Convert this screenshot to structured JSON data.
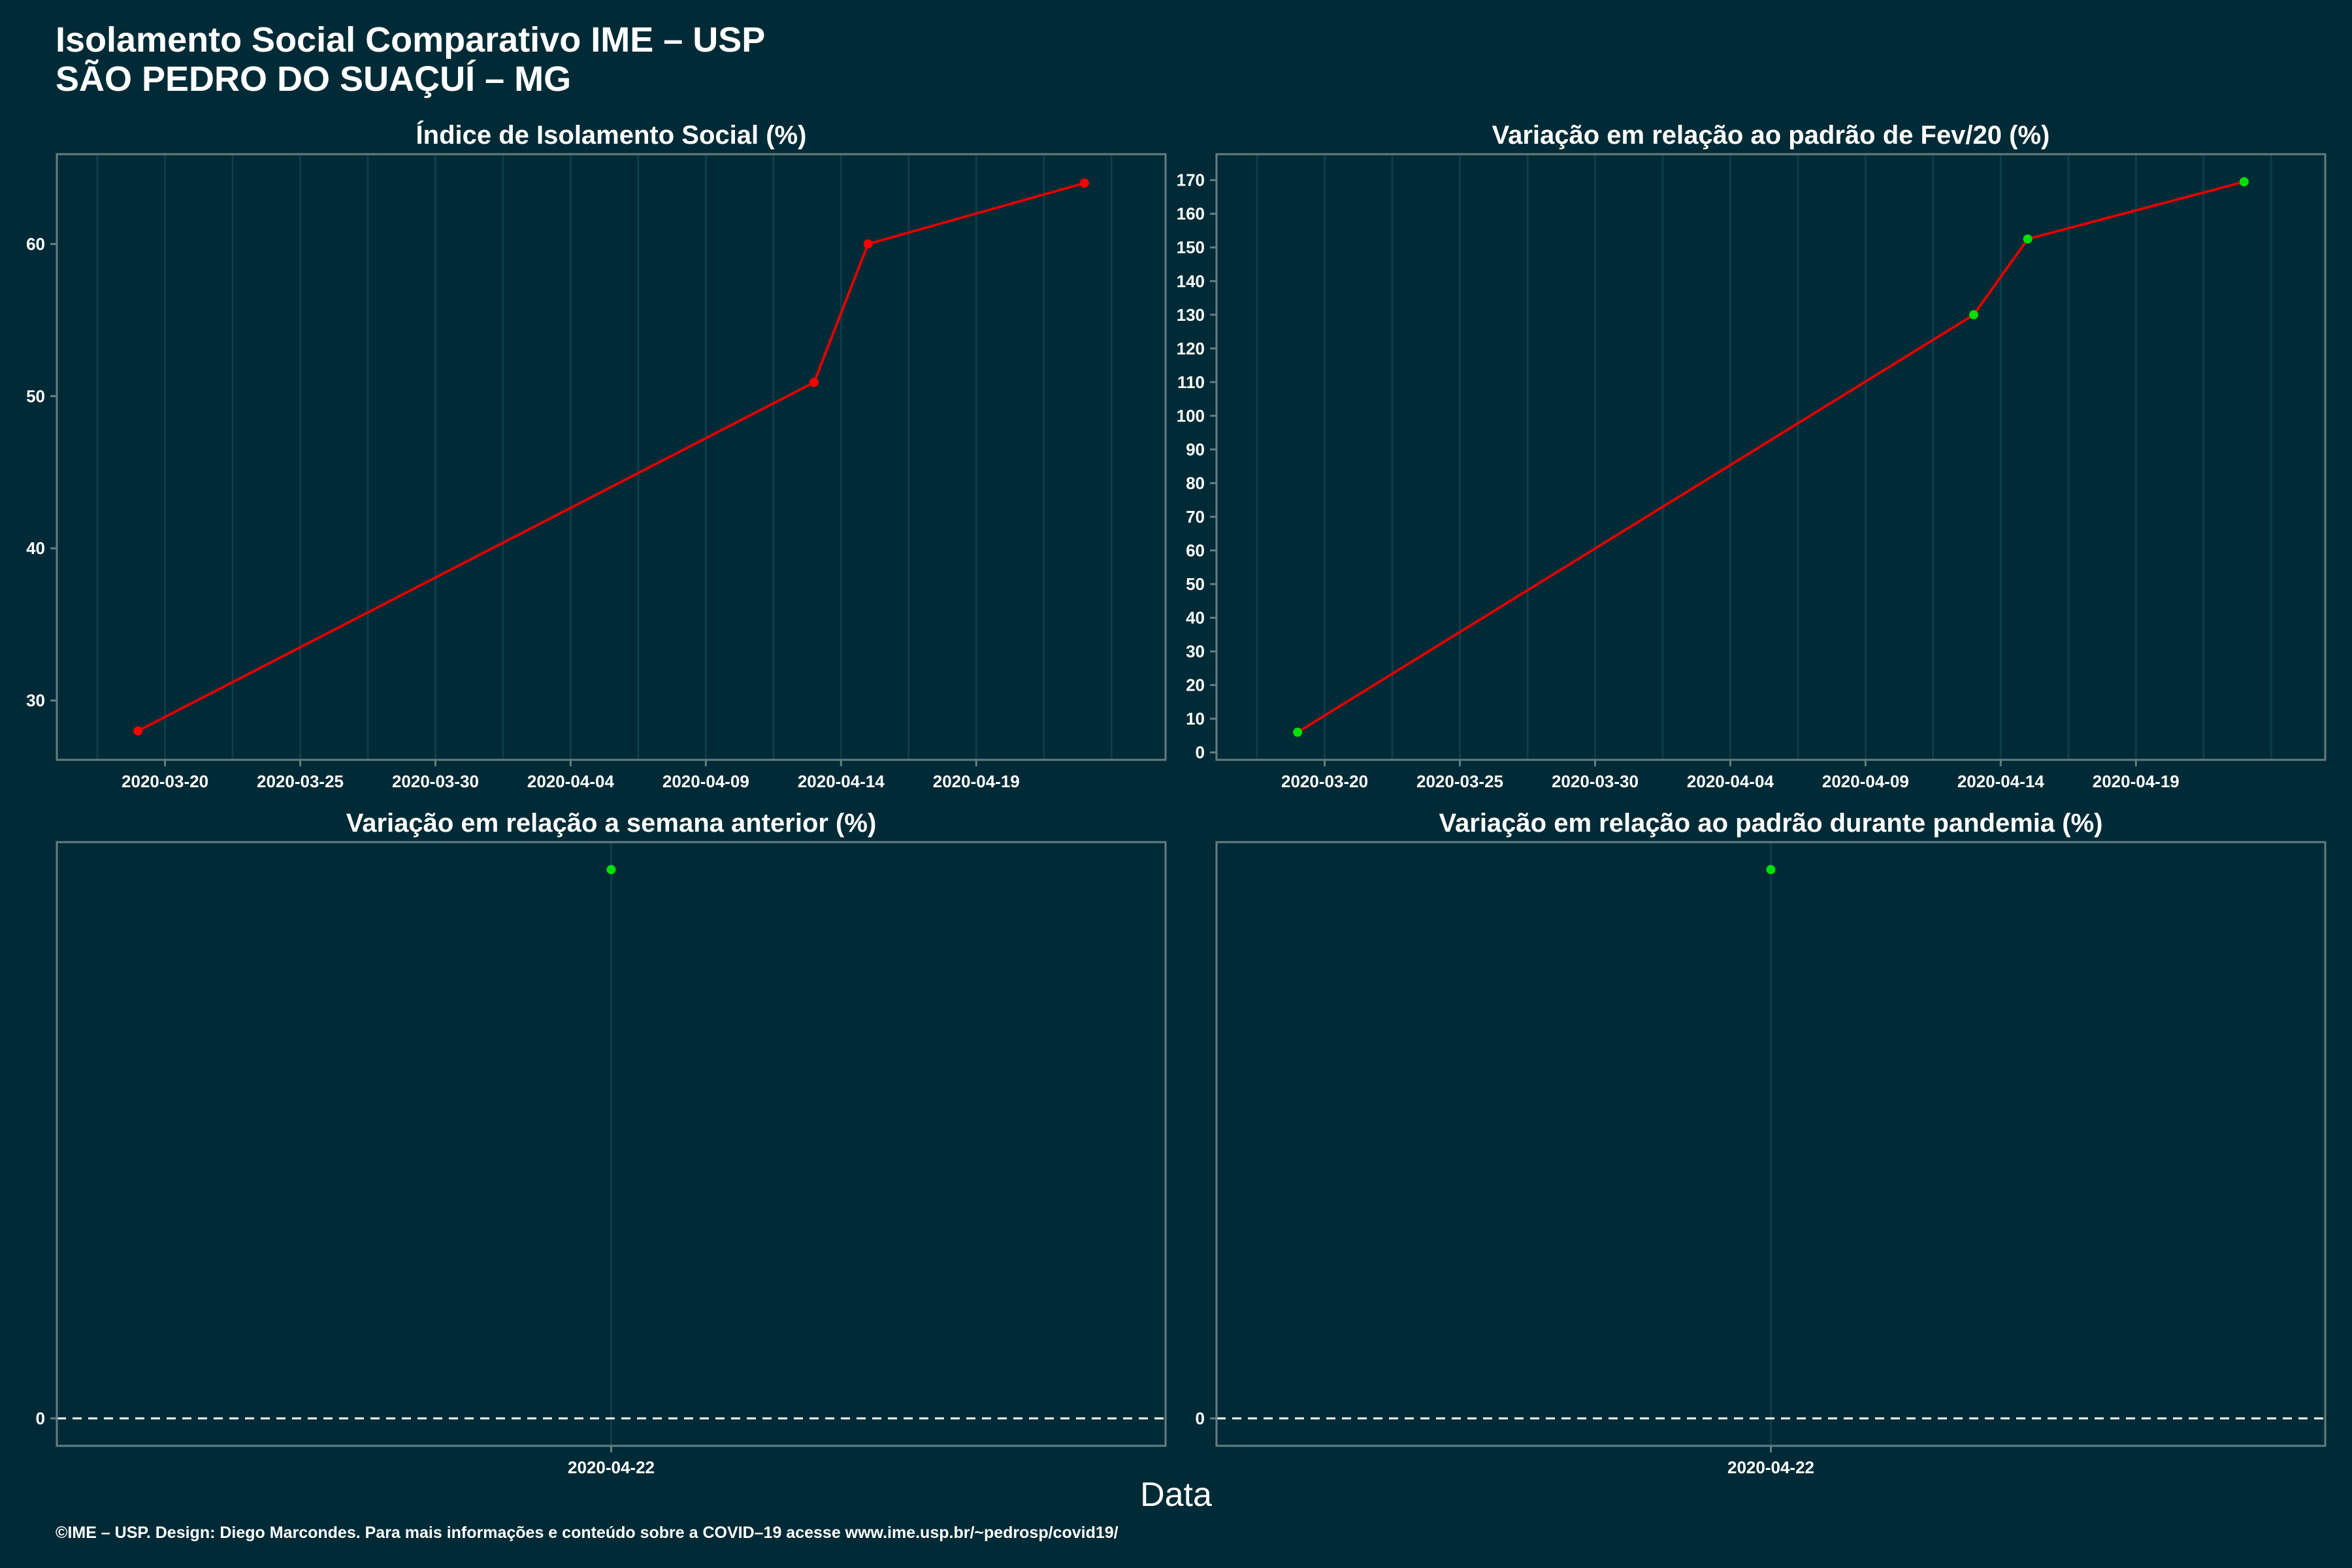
{
  "header": {
    "title_line1": "Isolamento Social Comparativo IME – USP",
    "title_line2": "SÃO PEDRO DO SUAÇUÍ – MG"
  },
  "shared_xlabel": "Data",
  "caption": "©IME – USP. Design: Diego Marcondes. Para mais informações e conteúdo sobre a COVID–19 acesse www.ime.usp.br/~pedrosp/covid19/",
  "colors": {
    "background": "#002b36",
    "line": "#e00000",
    "point_red": "#ff0000",
    "point_green": "#00e000",
    "text": "#ffffff",
    "grid": "#0e3e4a",
    "border": "#667c82"
  },
  "chart_data": [
    {
      "type": "line",
      "title": "Índice de Isolamento Social (%)",
      "xlabel": "",
      "ylabel": "",
      "x_type": "date",
      "x": [
        "2020-03-19",
        "2020-04-13",
        "2020-04-15",
        "2020-04-23"
      ],
      "y": [
        28.0,
        50.9,
        60.0,
        64.0
      ],
      "point_colors": [
        "red",
        "red",
        "red",
        "red"
      ],
      "xlim": [
        "2020-03-16",
        "2020-04-26"
      ],
      "ylim": [
        26.1,
        65.9
      ],
      "x_ticks": [
        "2020-03-20",
        "2020-03-25",
        "2020-03-30",
        "2020-04-04",
        "2020-04-09",
        "2020-04-14",
        "2020-04-19"
      ],
      "y_ticks": [
        30,
        40,
        50,
        60
      ],
      "grid": "vertical",
      "zero_line": false
    },
    {
      "type": "line",
      "title": "Variação em relação ao padrão de Fev/20 (%)",
      "xlabel": "",
      "ylabel": "",
      "x_type": "date",
      "x": [
        "2020-03-19",
        "2020-04-13",
        "2020-04-15",
        "2020-04-23"
      ],
      "y": [
        6.0,
        130.0,
        152.5,
        169.5
      ],
      "point_colors": [
        "green",
        "green",
        "green",
        "green"
      ],
      "xlim": [
        "2020-03-16",
        "2020-04-26"
      ],
      "ylim": [
        -2.2,
        177.7
      ],
      "x_ticks": [
        "2020-03-20",
        "2020-03-25",
        "2020-03-30",
        "2020-04-04",
        "2020-04-09",
        "2020-04-14",
        "2020-04-19"
      ],
      "y_ticks": [
        0,
        10,
        20,
        30,
        40,
        50,
        60,
        70,
        80,
        90,
        100,
        110,
        120,
        130,
        140,
        150,
        160,
        170
      ],
      "grid": "vertical",
      "zero_line": false
    },
    {
      "type": "scatter",
      "title": "Variação em relação a semana anterior (%)",
      "xlabel": "",
      "ylabel": "",
      "x_type": "date",
      "x": [
        "2020-04-22"
      ],
      "y": [
        1.0
      ],
      "point_colors": [
        "green"
      ],
      "xlim": [
        "2020-04-21",
        "2020-04-23"
      ],
      "ylim": [
        -0.05,
        1.05
      ],
      "x_ticks": [
        "2020-04-22"
      ],
      "y_ticks": [
        0
      ],
      "grid": "vertical",
      "zero_line": true
    },
    {
      "type": "scatter",
      "title": "Variação em relação ao padrão durante pandemia (%)",
      "xlabel": "",
      "ylabel": "",
      "x_type": "date",
      "x": [
        "2020-04-22"
      ],
      "y": [
        1.0
      ],
      "point_colors": [
        "green"
      ],
      "xlim": [
        "2020-04-21",
        "2020-04-23"
      ],
      "ylim": [
        -0.05,
        1.05
      ],
      "x_ticks": [
        "2020-04-22"
      ],
      "y_ticks": [
        0
      ],
      "grid": "vertical",
      "zero_line": true
    }
  ]
}
